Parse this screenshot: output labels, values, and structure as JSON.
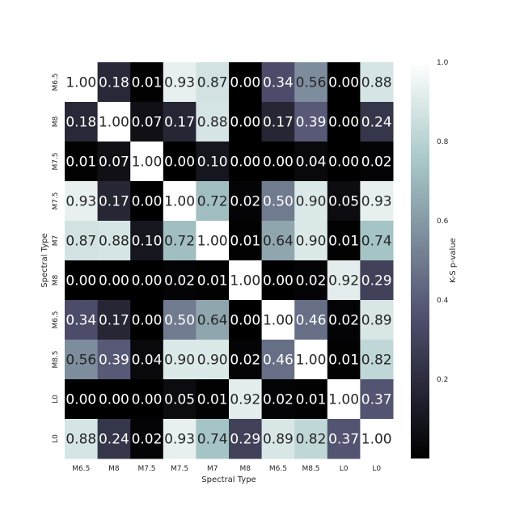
{
  "chart_data": {
    "type": "heatmap",
    "title": "",
    "xlabel": "Spectral Type",
    "ylabel": "Spectral Type",
    "x_categories": [
      "M6.5",
      "M8",
      "M7.5",
      "M7.5",
      "M7",
      "M8",
      "M6.5",
      "M8.5",
      "L0",
      "L0"
    ],
    "y_categories": [
      "M6.5",
      "M8",
      "M7.5",
      "M7.5",
      "M7",
      "M8",
      "M6.5",
      "M8.5",
      "L0",
      "L0"
    ],
    "values": [
      [
        1.0,
        0.18,
        0.01,
        0.93,
        0.87,
        0.0,
        0.34,
        0.56,
        0.0,
        0.88
      ],
      [
        0.18,
        1.0,
        0.07,
        0.17,
        0.88,
        0.0,
        0.17,
        0.39,
        0.0,
        0.24
      ],
      [
        0.01,
        0.07,
        1.0,
        0.0,
        0.1,
        0.0,
        0.0,
        0.04,
        0.0,
        0.02
      ],
      [
        0.93,
        0.17,
        0.0,
        1.0,
        0.72,
        0.02,
        0.5,
        0.9,
        0.05,
        0.93
      ],
      [
        0.87,
        0.88,
        0.1,
        0.72,
        1.0,
        0.01,
        0.64,
        0.9,
        0.01,
        0.74
      ],
      [
        0.0,
        0.0,
        0.0,
        0.02,
        0.01,
        1.0,
        0.0,
        0.02,
        0.92,
        0.29
      ],
      [
        0.34,
        0.17,
        0.0,
        0.5,
        0.64,
        0.0,
        1.0,
        0.46,
        0.02,
        0.89
      ],
      [
        0.56,
        0.39,
        0.04,
        0.9,
        0.9,
        0.02,
        0.46,
        1.0,
        0.01,
        0.82
      ],
      [
        0.0,
        0.0,
        0.0,
        0.05,
        0.01,
        0.92,
        0.02,
        0.01,
        1.0,
        0.37
      ],
      [
        0.88,
        0.24,
        0.02,
        0.93,
        0.74,
        0.29,
        0.89,
        0.82,
        0.37,
        1.0
      ]
    ],
    "colormap": "bone",
    "vmin": 0.0,
    "vmax": 1.0,
    "annotation_format": "0.00",
    "colorbar": {
      "label": "K-S p-value",
      "ticks": [
        "0.2",
        "0.4",
        "0.6",
        "0.8",
        "1.0"
      ],
      "tick_values": [
        0.2,
        0.4,
        0.6,
        0.8,
        1.0
      ],
      "placement": "right"
    },
    "grid": false
  }
}
